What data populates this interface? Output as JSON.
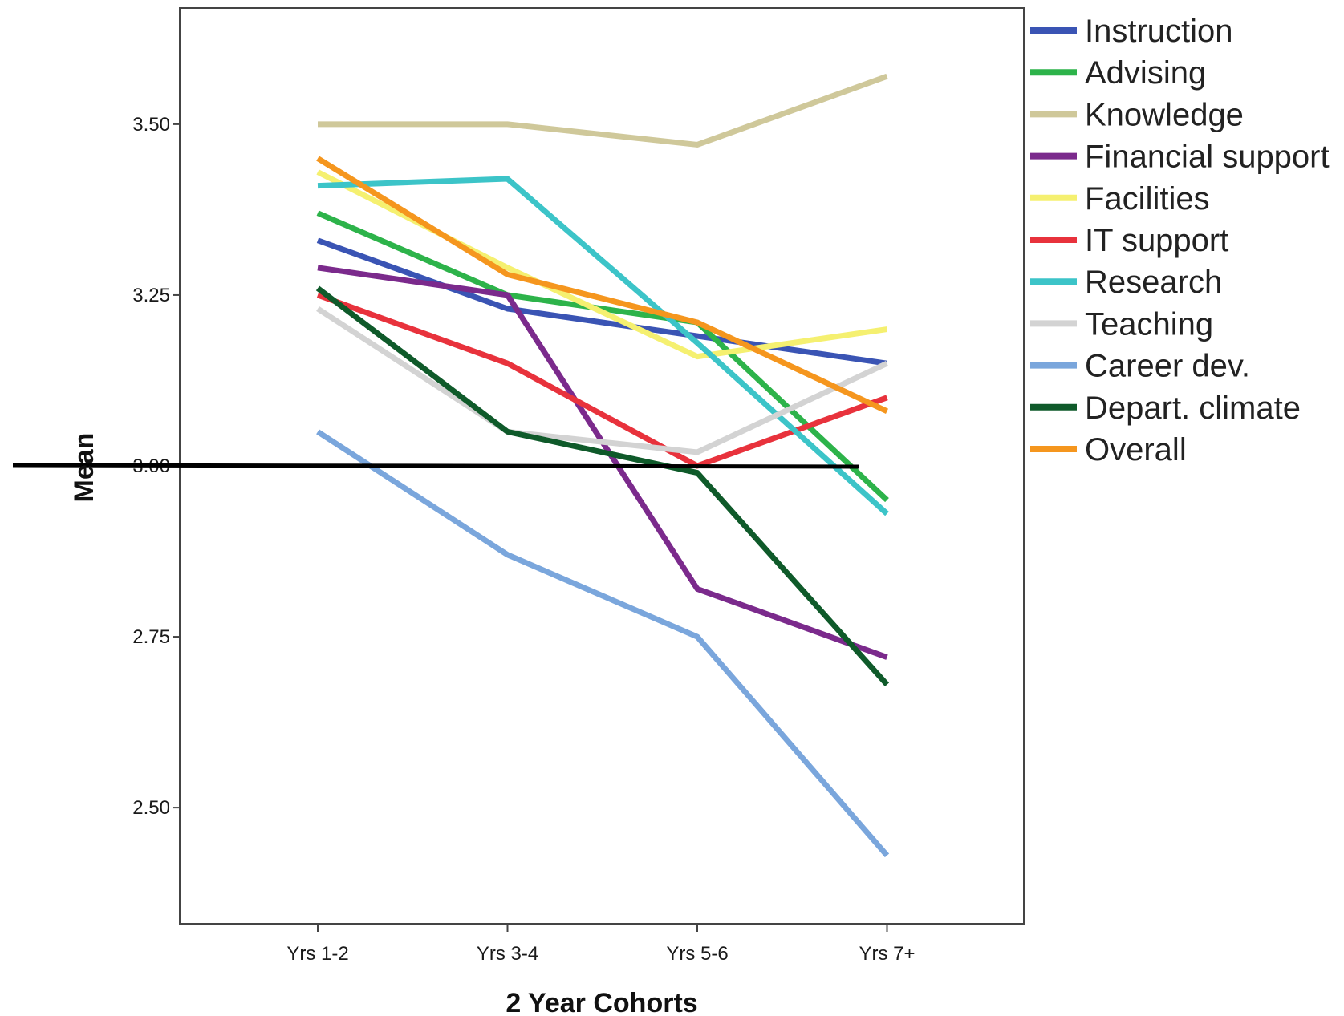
{
  "chart_data": {
    "type": "line",
    "xlabel": "2 Year Cohorts",
    "ylabel": "Mean",
    "categories": [
      "Yrs 1-2",
      "Yrs 3-4",
      "Yrs 5-6",
      "Yrs 7+"
    ],
    "ylim": [
      2.33,
      3.67
    ],
    "yticks": [
      "2.50",
      "2.75",
      "3.00",
      "3.25",
      "3.50"
    ],
    "grid": false,
    "legend_position": "right",
    "reference_line": 3.0,
    "series": [
      {
        "name": "Instruction",
        "color": "#3a54b4",
        "values": [
          3.33,
          3.23,
          3.19,
          3.15
        ]
      },
      {
        "name": "Advising",
        "color": "#2db34a",
        "values": [
          3.37,
          3.25,
          3.21,
          2.95
        ]
      },
      {
        "name": "Knowledge",
        "color": "#cfc89a",
        "values": [
          3.5,
          3.5,
          3.47,
          3.57
        ]
      },
      {
        "name": "Financial support",
        "color": "#7b2a8c",
        "values": [
          3.29,
          3.25,
          2.82,
          2.72
        ]
      },
      {
        "name": "Facilities",
        "color": "#f5f070",
        "values": [
          3.43,
          3.29,
          3.16,
          3.2
        ]
      },
      {
        "name": "IT support",
        "color": "#e8323c",
        "values": [
          3.25,
          3.15,
          3.0,
          3.1
        ]
      },
      {
        "name": "Research",
        "color": "#3cc4c8",
        "values": [
          3.41,
          3.42,
          3.18,
          2.93
        ]
      },
      {
        "name": "Teaching",
        "color": "#d3d3d3",
        "values": [
          3.23,
          3.05,
          3.02,
          3.15
        ]
      },
      {
        "name": "Career dev.",
        "color": "#7aa6dc",
        "values": [
          3.05,
          2.87,
          2.75,
          2.43
        ]
      },
      {
        "name": "Depart. climate",
        "color": "#0f5a2a",
        "values": [
          3.26,
          3.05,
          2.99,
          2.68
        ]
      },
      {
        "name": "Overall",
        "color": "#f5961e",
        "values": [
          3.45,
          3.28,
          3.21,
          3.08
        ]
      }
    ]
  }
}
